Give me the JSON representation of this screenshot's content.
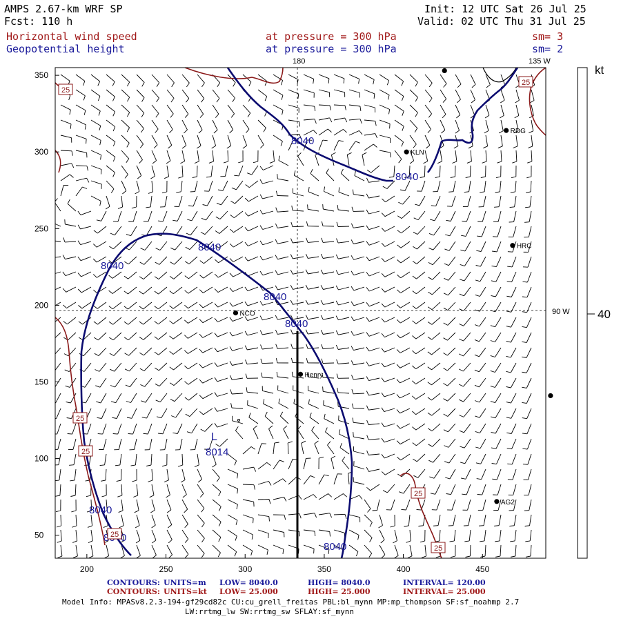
{
  "header": {
    "model": "AMPS 2.67-km WRF SP",
    "forecast": "Fcst: 110 h",
    "init": "Init: 12 UTC Sat 26 Jul 25",
    "valid": "Valid: 02 UTC Thu 31 Jul 25",
    "field1": "Horizontal wind speed",
    "field1_level": "at pressure =  300 hPa",
    "field1_sm": "sm= 3",
    "field2": "Geopotential height",
    "field2_level": "at pressure =  300 hPa",
    "field2_sm": "sm= 2"
  },
  "colors": {
    "wind_contour": "#8b1a1a",
    "height_contour": "#0b0b70",
    "label_navy": "#1a1a9a",
    "barb": "#000000"
  },
  "map": {
    "x_ticks": [
      200,
      250,
      300,
      350,
      400,
      450
    ],
    "y_ticks": [
      50,
      100,
      150,
      200,
      250,
      300,
      350
    ],
    "x_range": [
      180,
      490
    ],
    "y_range": [
      35,
      355
    ],
    "meridian_labels": [
      "180",
      "135 W",
      "90 W"
    ],
    "stations": [
      {
        "name": "KLN",
        "x": 402,
        "y": 300
      },
      {
        "name": "RDG",
        "x": 465,
        "y": 314
      },
      {
        "name": "HRC",
        "x": 469,
        "y": 239
      },
      {
        "name": "NCO",
        "x": 294,
        "y": 195
      },
      {
        "name": "Henry",
        "x": 335,
        "y": 155
      },
      {
        "name": "AG2",
        "x": 459,
        "y": 72
      },
      {
        "name": "",
        "x": 426,
        "y": 353
      },
      {
        "name": "",
        "x": 493,
        "y": 141
      }
    ],
    "low_label": "L",
    "low_value": "8014",
    "height_labels": [
      "8040",
      "8040",
      "8040",
      "8040",
      "8040",
      "8040",
      "8040",
      "8040",
      "8040",
      "8040"
    ],
    "wind_labels": [
      "25",
      "25",
      "25",
      "25",
      "25",
      "25",
      "25"
    ]
  },
  "colorbar": {
    "unit": "kt",
    "value": "40"
  },
  "stats": {
    "row1": {
      "name": "CONTOURS:",
      "units": "UNITS=m",
      "low": "LOW=  8040.0",
      "high": "HIGH=  8040.0",
      "interval": "INTERVAL=   120.00"
    },
    "row2": {
      "name": "CONTOURS:",
      "units": "UNITS=kt",
      "low": "LOW=  25.000",
      "high": "HIGH=  25.000",
      "interval": "INTERVAL=   25.000"
    }
  },
  "model_info": {
    "line1": "Model Info: MPASv8.2.3-194-gf29cd82c CU:cu_grell_freitas PBL:bl_mynn MP:mp_thompson SF:sf_noahmp 2.7",
    "line2": "LW:rrtmg_lw SW:rrtmg_sw SFLAY:sf_mynn"
  }
}
